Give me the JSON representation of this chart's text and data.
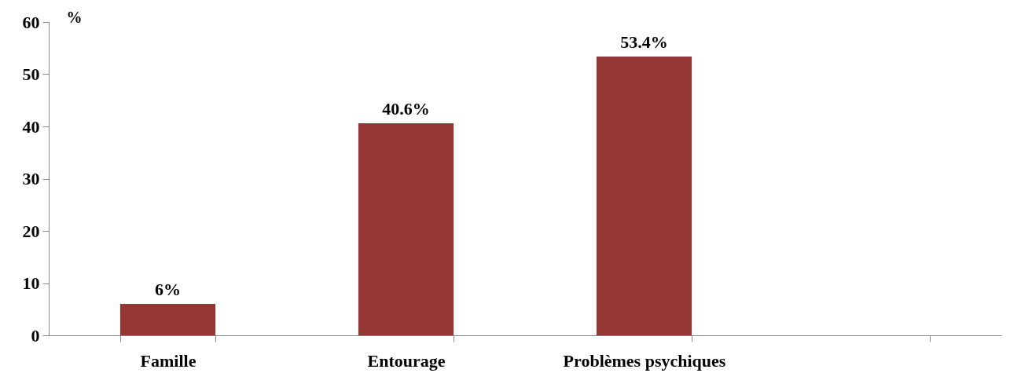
{
  "chart_data": {
    "type": "bar",
    "ylabel": "%",
    "categories": [
      "Famille",
      "Entourage",
      "Problèmes psychiques",
      null
    ],
    "values": [
      6,
      40.6,
      53.4,
      null
    ],
    "value_labels": [
      "6%",
      "40.6%",
      "53.4%",
      null
    ],
    "color": "#943634",
    "ylim": [
      0,
      60
    ],
    "yticks": [
      0,
      10,
      20,
      30,
      40,
      50,
      60
    ],
    "grid": false
  }
}
